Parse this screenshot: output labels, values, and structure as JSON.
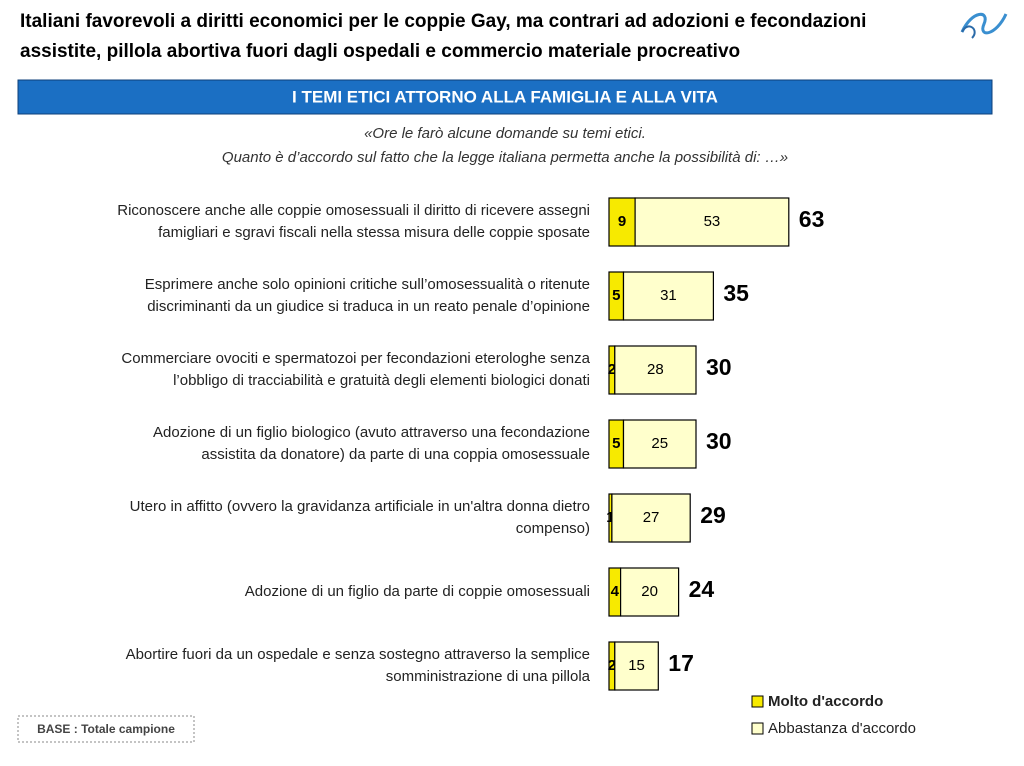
{
  "chart_data": {
    "type": "bar",
    "title": [
      "Italiani favorevoli a diritti economici per le coppie Gay, ma contrari ad adozioni e fecondazioni",
      "assistite, pillola abortiva fuori dagli ospedali e commercio materiale procreativo"
    ],
    "banner": "I TEMI ETICI ATTORNO ALLA FAMIGLIA E ALLA VITA",
    "subtitle": [
      "«Ore le farò alcune domande su temi etici.",
      "Quanto è d’accordo sul fatto che la legge italiana permetta anche la possibilità di: …»"
    ],
    "categories": [
      [
        "Riconoscere anche alle coppie omosessuali il diritto di ricevere assegni",
        "famigliari e sgravi fiscali nella stessa misura delle  coppie sposate"
      ],
      [
        "Esprimere anche solo opinioni critiche sull’omosessualità o ritenute",
        "discriminanti da un giudice si traduca in un reato penale d’opinione"
      ],
      [
        "Commerciare ovociti e spermatozoi per fecondazioni eterologhe senza",
        "l’obbligo di tracciabilità e gratuità degli elementi biologici donati"
      ],
      [
        "Adozione di un figlio biologico (avuto attraverso una fecondazione",
        "assistita da donatore) da parte di una coppia omosessuale"
      ],
      [
        "Utero in affitto (ovvero la gravidanza artificiale in un'altra donna dietro",
        "compenso)"
      ],
      [
        "Adozione di un figlio da parte di coppie omosessuali"
      ],
      [
        "Abortire fuori da un ospedale e senza sostegno attraverso la semplice",
        "somministrazione di una pillola"
      ]
    ],
    "series": [
      {
        "name": "Molto d'accordo",
        "color": "#f7ea00",
        "values": [
          9,
          5,
          2,
          5,
          1,
          4,
          2
        ]
      },
      {
        "name": "Abbastanza d'accordo",
        "color": "#ffffcc",
        "values": [
          53,
          31,
          28,
          25,
          27,
          20,
          15
        ]
      }
    ],
    "totals": [
      63,
      35,
      30,
      30,
      29,
      24,
      17
    ],
    "note": "BASE : Totale campione"
  }
}
